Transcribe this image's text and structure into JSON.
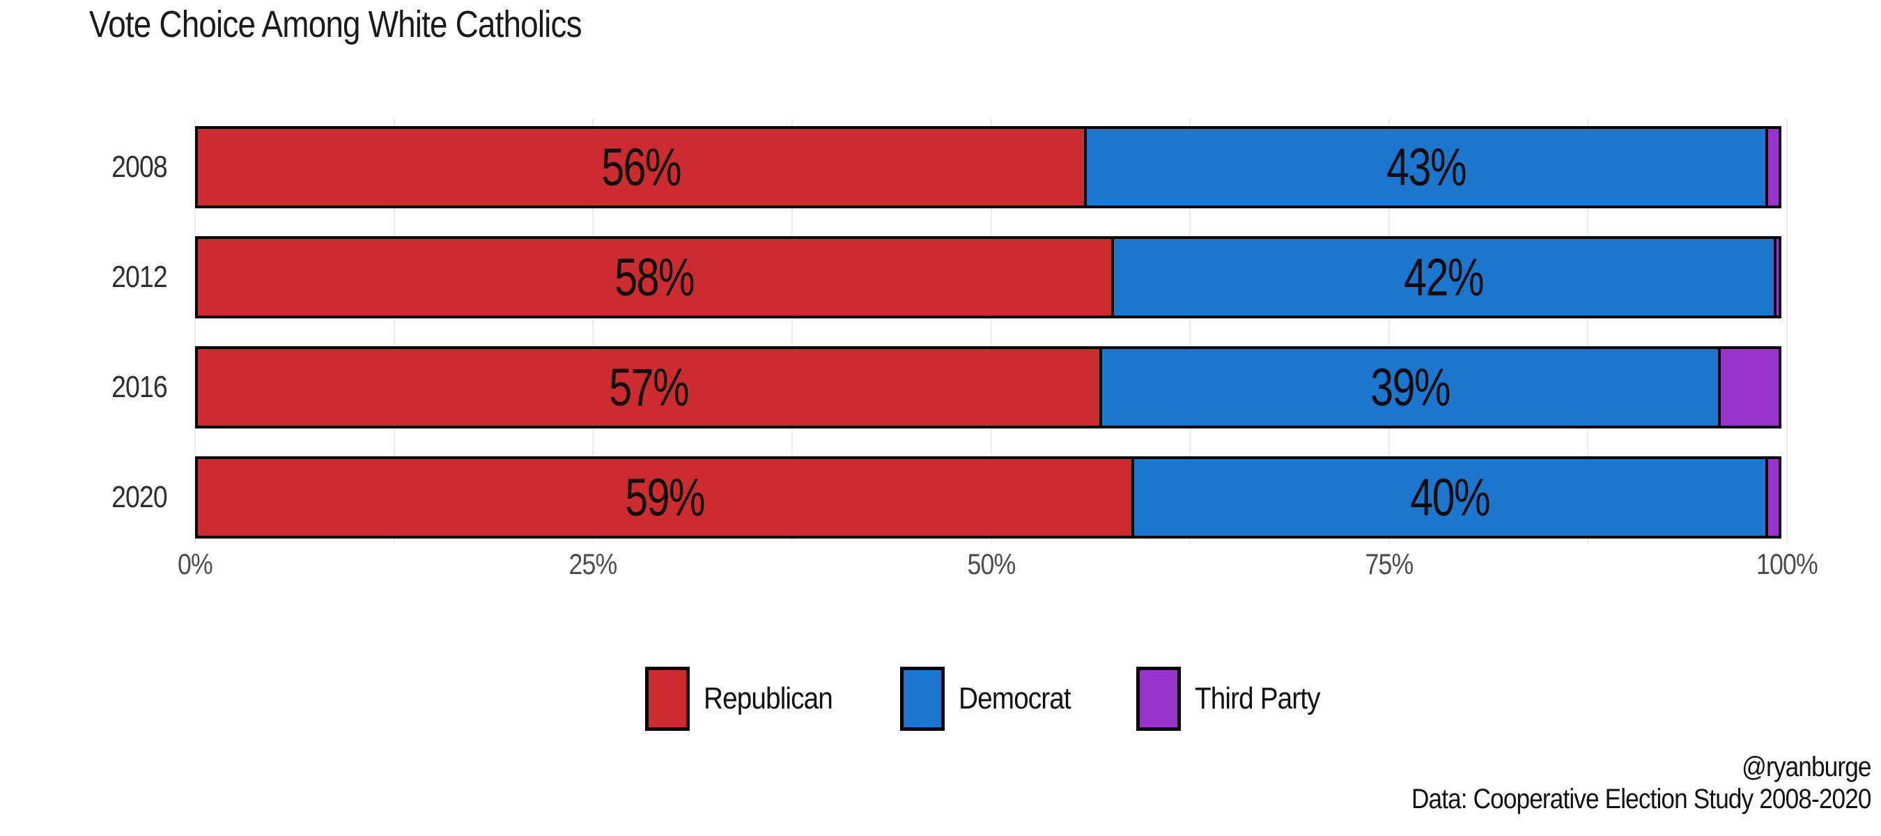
{
  "title": "Vote Choice Among White Catholics",
  "caption": {
    "handle": "@ryanburge",
    "source": "Data: Cooperative Election Study 2008-2020"
  },
  "colors": {
    "republican": "#CC2C2F",
    "democrat": "#1D76CE",
    "third_party": "#9933CC",
    "bar_outline": "#000000",
    "grid": "#EBEBEB",
    "axis_text": "#4D4D4D",
    "label_text": "#0D0D0D",
    "title_text": "#1A1A1A"
  },
  "legend": [
    {
      "label": "Republican",
      "color": "#CC2C2F"
    },
    {
      "label": "Democrat",
      "color": "#1D76CE"
    },
    {
      "label": "Third Party",
      "color": "#9933CC"
    }
  ],
  "x_axis": {
    "ticks": [
      {
        "label": "0%",
        "pct": 0
      },
      {
        "label": "25%",
        "pct": 25
      },
      {
        "label": "50%",
        "pct": 50
      },
      {
        "label": "75%",
        "pct": 75
      },
      {
        "label": "100%",
        "pct": 100
      }
    ],
    "grid_step_pct": 12.5
  },
  "y_axis": {
    "categories": [
      "2008",
      "2012",
      "2016",
      "2020"
    ]
  },
  "chart_data": {
    "type": "bar",
    "orientation": "horizontal",
    "stacked": true,
    "title": "Vote Choice Among White Catholics",
    "categories": [
      "2008",
      "2012",
      "2016",
      "2020"
    ],
    "series": [
      {
        "name": "Republican",
        "color": "#CC2C2F",
        "values": [
          56,
          58,
          57,
          59
        ],
        "labels": [
          "56%",
          "58%",
          "57%",
          "59%"
        ]
      },
      {
        "name": "Democrat",
        "color": "#1D76CE",
        "values": [
          43,
          42,
          39,
          40
        ],
        "labels": [
          "43%",
          "42%",
          "39%",
          "40%"
        ]
      },
      {
        "name": "Third Party",
        "color": "#9933CC",
        "values": [
          1,
          0.5,
          4,
          1
        ],
        "labels": [
          "",
          "",
          "",
          ""
        ]
      }
    ],
    "xlim": [
      0,
      100
    ],
    "x_tick_labels": [
      "0%",
      "25%",
      "50%",
      "75%",
      "100%"
    ],
    "legend_position": "bottom",
    "grid": "vertical-light-12.5pct"
  }
}
